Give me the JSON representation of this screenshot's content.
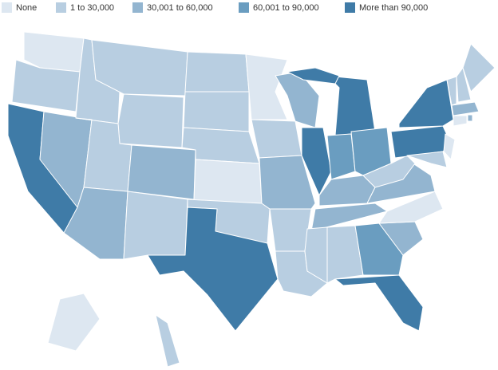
{
  "legend": [
    {
      "label": "None",
      "color": "#dde7f1"
    },
    {
      "label": "1 to 30,000",
      "color": "#b8cee1"
    },
    {
      "label": "30,001 to 60,000",
      "color": "#93b5d0"
    },
    {
      "label": "60,001 to 90,000",
      "color": "#6a9dc0"
    },
    {
      "label": "More than 90,000",
      "color": "#3f7ba7"
    }
  ],
  "regions": [
    0,
    1,
    4,
    2,
    1,
    1,
    1,
    1,
    2,
    2,
    1,
    1,
    1,
    1,
    0,
    1,
    4,
    0,
    1,
    2,
    1,
    1,
    2,
    4,
    4,
    4,
    3,
    3,
    2,
    2,
    1,
    1,
    3,
    4,
    2,
    0,
    2,
    1,
    4,
    4,
    1,
    0,
    1,
    1,
    1,
    2,
    0,
    2,
    0,
    1
  ]
}
